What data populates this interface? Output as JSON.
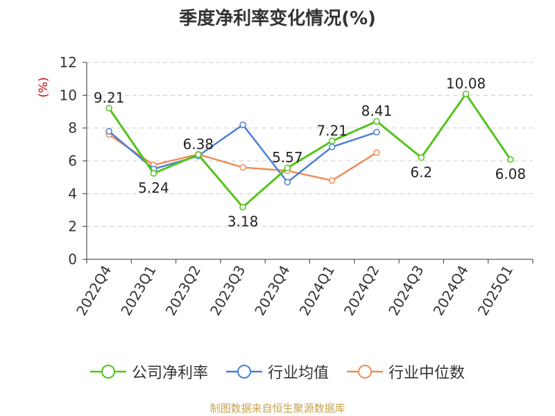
{
  "chart_data": {
    "type": "line",
    "title": "季度净利率变化情况(%)",
    "ylabel": "(%)",
    "xlabel": "",
    "categories": [
      "2022Q4",
      "2023Q1",
      "2023Q2",
      "2023Q3",
      "2023Q4",
      "2024Q1",
      "2024Q2",
      "2024Q3",
      "2024Q4",
      "2025Q1"
    ],
    "ylim": [
      0,
      12
    ],
    "yticks": [
      0,
      2,
      4,
      6,
      8,
      10,
      12
    ],
    "grid": true,
    "legend_position": "bottom",
    "series": [
      {
        "name": "公司净利率",
        "color": "#52c41a",
        "values": [
          9.21,
          5.24,
          6.38,
          3.18,
          5.57,
          7.21,
          8.41,
          6.2,
          10.08,
          6.08
        ],
        "labels": [
          "9.21",
          "5.24",
          "6.38",
          "3.18",
          "5.57",
          "7.21",
          "8.41",
          "6.2",
          "10.08",
          "6.08"
        ]
      },
      {
        "name": "行业均值",
        "color": "#4a7fd6",
        "values": [
          7.8,
          5.5,
          6.3,
          8.2,
          4.7,
          6.85,
          7.75,
          null,
          null,
          null
        ]
      },
      {
        "name": "行业中位数",
        "color": "#f08c55",
        "values": [
          7.6,
          5.75,
          6.4,
          5.6,
          5.4,
          4.8,
          6.5,
          null,
          null,
          null
        ]
      }
    ]
  },
  "source": "制图数据来自恒生聚源数据库"
}
